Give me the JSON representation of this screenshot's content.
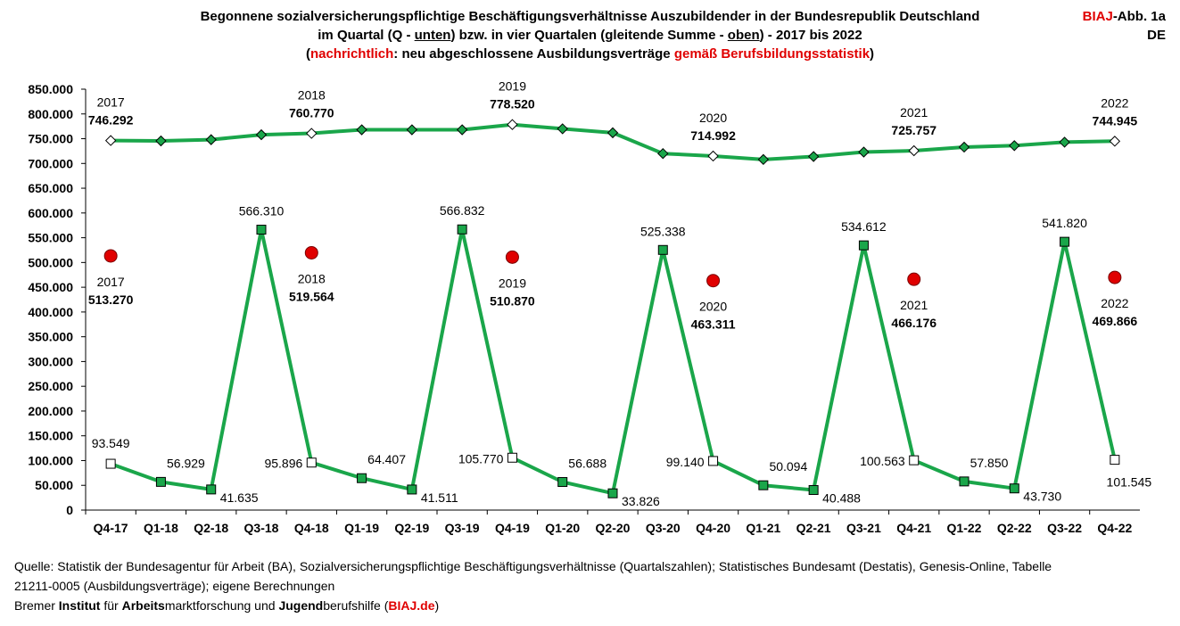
{
  "title": {
    "line1": "Begonnene sozialversicherungspflichtige Beschäftigungsverhältnisse Auszubildender in der Bundesrepublik Deutschland",
    "line2_a": "im Quartal (Q - ",
    "line2_b": "unten",
    "line2_c": ") bzw. in vier Quartalen (gleitende Summe - ",
    "line2_d": "oben",
    "line2_e": ") - 2017 bis 2022",
    "line3_a": "(",
    "line3_b": "nachrichtlich",
    "line3_c": ": neu abgeschlossene Ausbildungsverträge ",
    "line3_d": "gemäß Berufsbildungsstatistik",
    "line3_e": ")"
  },
  "badge": {
    "brand": "BIAJ",
    "label": "-Abb. 1a",
    "region": "DE"
  },
  "source": {
    "line1": "Quelle: Statistik der Bundesagentur für Arbeit (BA), Sozialversicherungspflichtige Beschäftigungsverhältnisse (Quartalszahlen); Statistisches Bundesamt (Destatis), Genesis-Online, Tabelle",
    "line2": "21211-0005 (Ausbildungsverträge); eigene Berechnungen",
    "line3_a": "Bremer ",
    "line3_b": "Institut",
    "line3_c": " für ",
    "line3_d": "Arbeits",
    "line3_e": "marktforschung und ",
    "line3_f": "Jugend",
    "line3_g": "berufshilfe (",
    "line3_h": "BIAJ.de",
    "line3_i": ")"
  },
  "colors": {
    "line": "#1aa64a",
    "square": "#1aa64a",
    "dot": "#e00000",
    "accent": "#e00000"
  },
  "chart_data": {
    "type": "line",
    "ylim": [
      0,
      850000
    ],
    "yticks": [
      0,
      50000,
      100000,
      150000,
      200000,
      250000,
      300000,
      350000,
      400000,
      450000,
      500000,
      550000,
      600000,
      650000,
      700000,
      750000,
      800000,
      850000
    ],
    "ytick_labels": [
      "0",
      "50.000",
      "100.000",
      "150.000",
      "200.000",
      "250.000",
      "300.000",
      "350.000",
      "400.000",
      "450.000",
      "500.000",
      "550.000",
      "600.000",
      "650.000",
      "700.000",
      "750.000",
      "800.000",
      "850.000"
    ],
    "categories": [
      "Q4-17",
      "Q1-18",
      "Q2-18",
      "Q3-18",
      "Q4-18",
      "Q1-19",
      "Q2-19",
      "Q3-19",
      "Q4-19",
      "Q1-20",
      "Q2-20",
      "Q3-20",
      "Q4-20",
      "Q1-21",
      "Q2-21",
      "Q3-21",
      "Q4-21",
      "Q1-22",
      "Q2-22",
      "Q3-22",
      "Q4-22"
    ],
    "series": [
      {
        "name": "gleitende Summe (vier Quartale)",
        "values": [
          746292,
          745500,
          748000,
          758000,
          760770,
          768000,
          768000,
          768000,
          778520,
          770000,
          762000,
          720000,
          714992,
          708000,
          714000,
          723000,
          725757,
          733000,
          736000,
          743000,
          744945
        ],
        "labels": [
          {
            "index": 0,
            "year": "2017",
            "value": "746.292"
          },
          {
            "index": 4,
            "year": "2018",
            "value": "760.770"
          },
          {
            "index": 8,
            "year": "2019",
            "value": "778.520"
          },
          {
            "index": 12,
            "year": "2020",
            "value": "714.992"
          },
          {
            "index": 16,
            "year": "2021",
            "value": "725.757"
          },
          {
            "index": 20,
            "year": "2022",
            "value": "744.945"
          }
        ]
      },
      {
        "name": "im Quartal",
        "values": [
          93549,
          56929,
          41635,
          566310,
          95896,
          64407,
          41511,
          566832,
          105770,
          56688,
          33826,
          525338,
          99140,
          50094,
          40488,
          534612,
          100563,
          57850,
          43730,
          541820,
          101545
        ],
        "value_labels": [
          "93.549",
          "56.929",
          "41.635",
          "566.310",
          "95.896",
          "64.407",
          "41.511",
          "566.832",
          "105.770",
          "56.688",
          "33.826",
          "525.338",
          "99.140",
          "50.094",
          "40.488",
          "534.612",
          "100.563",
          "57.850",
          "43.730",
          "541.820",
          "101.545"
        ]
      },
      {
        "name": "neu abgeschlossene Ausbildungsverträge (Berufsbildungsstatistik)",
        "points": [
          {
            "index": 0,
            "year": "2017",
            "value": 513270,
            "label": "513.270"
          },
          {
            "index": 4,
            "year": "2018",
            "value": 519564,
            "label": "519.564"
          },
          {
            "index": 8,
            "year": "2019",
            "value": 510870,
            "label": "510.870"
          },
          {
            "index": 12,
            "year": "2020",
            "value": 463311,
            "label": "463.311"
          },
          {
            "index": 16,
            "year": "2021",
            "value": 466176,
            "label": "466.176"
          },
          {
            "index": 20,
            "year": "2022",
            "value": 469866,
            "label": "469.866"
          }
        ]
      }
    ]
  }
}
